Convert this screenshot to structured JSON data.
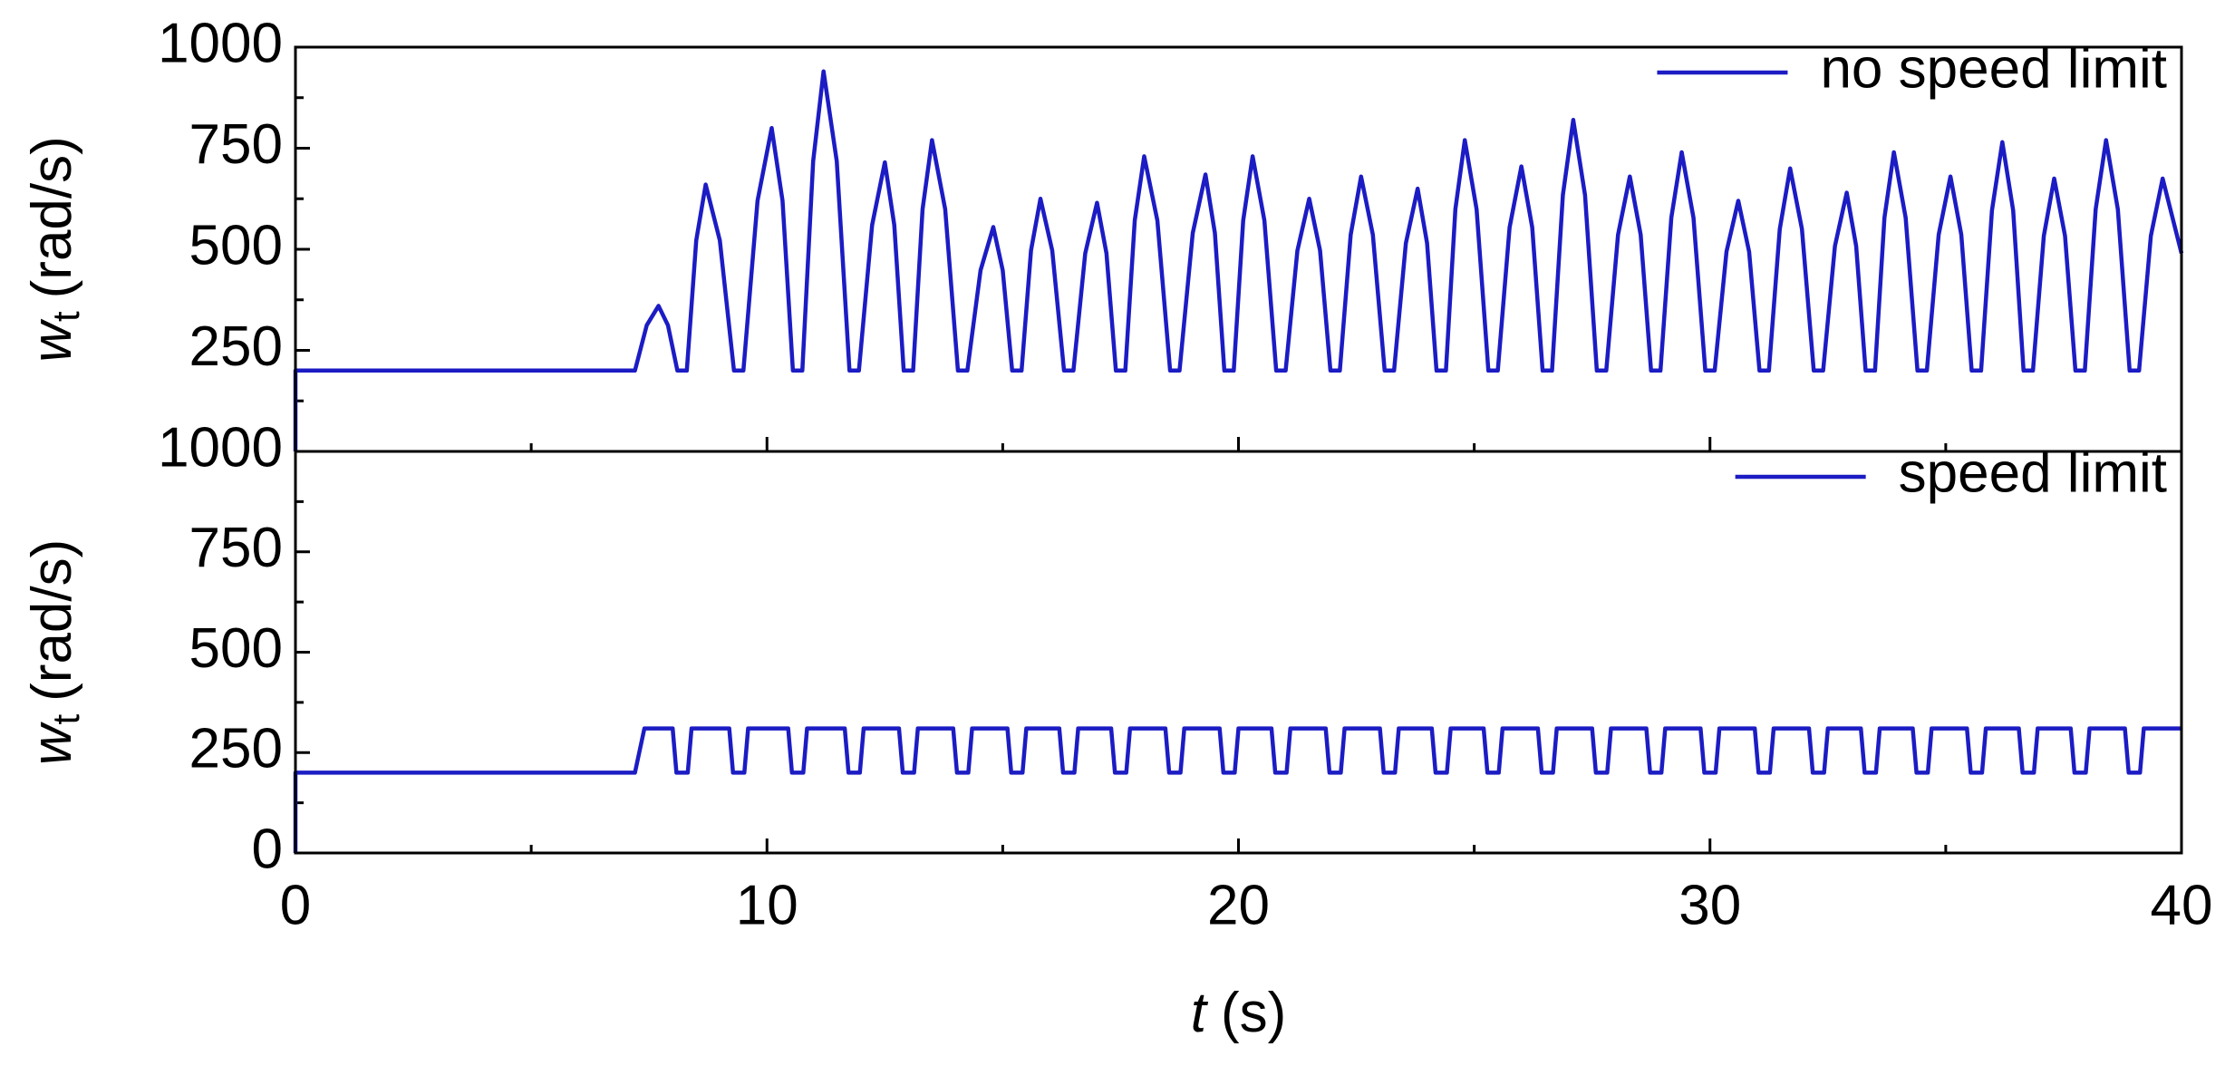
{
  "chart_data": [
    {
      "type": "line",
      "legend": "upper right",
      "x_tick_labels": false,
      "y_label": {
        "symbol": "w",
        "subscript": "t",
        "unit": "(rad/s)"
      },
      "xlim": [
        0,
        40
      ],
      "xticks": [
        0,
        10,
        20,
        30,
        40
      ],
      "minor_xticks": [
        5,
        15,
        25,
        35
      ],
      "ylim": [
        0,
        1000
      ],
      "yticks": [
        250,
        500,
        750,
        1000
      ],
      "minor_yticks": [
        125,
        375,
        625,
        875
      ],
      "x": [
        0,
        0,
        7.2,
        7.45,
        7.7,
        7.9,
        8.1,
        8.3,
        8.5,
        8.7,
        9.0,
        9.3,
        9.5,
        9.8,
        10.1,
        10.33,
        10.55,
        10.75,
        10.98,
        11.2,
        11.48,
        11.75,
        11.95,
        12.23,
        12.5,
        12.7,
        12.9,
        13.1,
        13.3,
        13.5,
        13.78,
        14.05,
        14.25,
        14.53,
        14.8,
        15.0,
        15.2,
        15.4,
        15.6,
        15.8,
        16.05,
        16.3,
        16.5,
        16.75,
        17.0,
        17.2,
        17.4,
        17.6,
        17.8,
        18.0,
        18.28,
        18.55,
        18.75,
        19.03,
        19.3,
        19.5,
        19.7,
        19.9,
        20.1,
        20.3,
        20.55,
        20.8,
        21.0,
        21.25,
        21.5,
        21.73,
        21.95,
        22.15,
        22.38,
        22.6,
        22.85,
        23.1,
        23.3,
        23.55,
        23.8,
        24.0,
        24.2,
        24.4,
        24.6,
        24.8,
        25.05,
        25.3,
        25.5,
        25.75,
        26.0,
        26.23,
        26.45,
        26.65,
        26.88,
        27.1,
        27.35,
        27.6,
        27.8,
        28.05,
        28.3,
        28.53,
        28.75,
        28.95,
        29.18,
        29.4,
        29.65,
        29.9,
        30.1,
        30.35,
        30.6,
        30.83,
        31.05,
        31.25,
        31.48,
        31.7,
        31.95,
        32.2,
        32.4,
        32.65,
        32.9,
        33.1,
        33.3,
        33.5,
        33.7,
        33.9,
        34.15,
        34.4,
        34.6,
        34.85,
        35.1,
        35.33,
        35.55,
        35.75,
        35.98,
        36.2,
        36.43,
        36.65,
        36.85,
        37.08,
        37.3,
        37.53,
        37.75,
        37.95,
        38.18,
        38.4,
        38.65,
        38.9,
        39.1,
        39.35,
        39.6,
        40
      ],
      "series": [
        {
          "name": "no speed limit",
          "color": "#1c1cc4",
          "values": [
            0,
            200,
            200,
            312,
            360,
            312,
            200,
            200,
            522,
            660,
            522,
            200,
            200,
            620,
            800,
            620,
            200,
            200,
            718,
            940,
            718,
            200,
            200,
            560,
            715,
            560,
            200,
            200,
            599,
            770,
            599,
            200,
            200,
            448,
            555,
            448,
            200,
            200,
            497,
            625,
            497,
            200,
            200,
            490,
            615,
            490,
            200,
            200,
            571,
            730,
            571,
            200,
            200,
            540,
            685,
            540,
            200,
            200,
            571,
            730,
            571,
            200,
            200,
            497,
            625,
            497,
            200,
            200,
            536,
            680,
            536,
            200,
            200,
            515,
            650,
            515,
            200,
            200,
            599,
            770,
            599,
            200,
            200,
            554,
            705,
            554,
            200,
            200,
            634,
            820,
            634,
            200,
            200,
            536,
            680,
            536,
            200,
            200,
            578,
            740,
            578,
            200,
            200,
            494,
            620,
            494,
            200,
            200,
            550,
            700,
            550,
            200,
            200,
            508,
            640,
            508,
            200,
            200,
            578,
            740,
            578,
            200,
            200,
            536,
            680,
            536,
            200,
            200,
            596,
            765,
            596,
            200,
            200,
            533,
            675,
            533,
            200,
            200,
            599,
            770,
            599,
            200,
            200,
            533,
            675,
            490
          ]
        }
      ]
    },
    {
      "type": "line",
      "legend": "upper right",
      "x_tick_labels": true,
      "y_label": {
        "symbol": "w",
        "subscript": "t",
        "unit": "(rad/s)"
      },
      "x_label": {
        "symbol": "t",
        "unit": "(s)"
      },
      "xlim": [
        0,
        40
      ],
      "xticks": [
        0,
        10,
        20,
        30,
        40
      ],
      "minor_xticks": [
        5,
        15,
        25,
        35
      ],
      "ylim": [
        0,
        1000
      ],
      "yticks": [
        0,
        250,
        500,
        750,
        1000
      ],
      "minor_yticks": [
        125,
        375,
        625,
        875
      ],
      "x": [
        0,
        0,
        7.2,
        7.4,
        8.0,
        8.08,
        8.32,
        8.4,
        9.2,
        9.28,
        9.52,
        9.6,
        10.45,
        10.53,
        10.77,
        10.85,
        11.65,
        11.73,
        11.97,
        12.05,
        12.8,
        12.88,
        13.12,
        13.2,
        13.95,
        14.03,
        14.27,
        14.35,
        15.1,
        15.18,
        15.42,
        15.5,
        16.2,
        16.28,
        16.52,
        16.6,
        17.3,
        17.38,
        17.62,
        17.7,
        18.45,
        18.53,
        18.77,
        18.85,
        19.6,
        19.68,
        19.92,
        20.0,
        20.7,
        20.78,
        21.02,
        21.1,
        21.85,
        21.93,
        22.17,
        22.25,
        23.0,
        23.08,
        23.32,
        23.4,
        24.1,
        24.18,
        24.42,
        24.5,
        25.2,
        25.28,
        25.52,
        25.6,
        26.35,
        26.43,
        26.67,
        26.75,
        27.5,
        27.58,
        27.82,
        27.9,
        28.65,
        28.73,
        28.97,
        29.05,
        29.8,
        29.88,
        30.12,
        30.2,
        30.95,
        31.03,
        31.27,
        31.35,
        32.1,
        32.18,
        32.42,
        32.5,
        33.2,
        33.28,
        33.52,
        33.6,
        34.3,
        34.38,
        34.62,
        34.7,
        35.45,
        35.53,
        35.77,
        35.85,
        36.55,
        36.63,
        36.87,
        36.95,
        37.65,
        37.73,
        37.97,
        38.05,
        38.8,
        38.88,
        39.12,
        39.2,
        40
      ],
      "series": [
        {
          "name": "speed limit",
          "color": "#1c1cc4",
          "values": [
            0,
            200,
            200,
            310,
            310,
            200,
            200,
            310,
            310,
            200,
            200,
            310,
            310,
            200,
            200,
            310,
            310,
            200,
            200,
            310,
            310,
            200,
            200,
            310,
            310,
            200,
            200,
            310,
            310,
            200,
            200,
            310,
            310,
            200,
            200,
            310,
            310,
            200,
            200,
            310,
            310,
            200,
            200,
            310,
            310,
            200,
            200,
            310,
            310,
            200,
            200,
            310,
            310,
            200,
            200,
            310,
            310,
            200,
            200,
            310,
            310,
            200,
            200,
            310,
            310,
            200,
            200,
            310,
            310,
            200,
            200,
            310,
            310,
            200,
            200,
            310,
            310,
            200,
            200,
            310,
            310,
            200,
            200,
            310,
            310,
            200,
            200,
            310,
            310,
            200,
            200,
            310,
            310,
            200,
            200,
            310,
            310,
            200,
            200,
            310,
            310,
            200,
            200,
            310,
            310,
            200,
            200,
            310,
            310,
            200,
            200,
            310,
            310,
            200,
            200,
            310,
            310
          ]
        }
      ]
    }
  ]
}
